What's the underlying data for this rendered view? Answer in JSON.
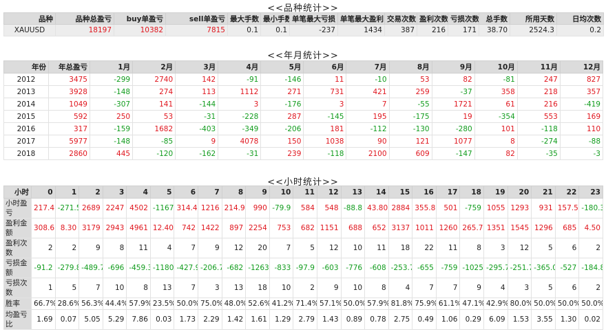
{
  "variety_stats": {
    "title": "<<品种统计>>",
    "headers": [
      "品种",
      "品种总盈亏",
      "buy单盈亏",
      "sell单盈亏",
      "最大手数",
      "最小手数",
      "单笔最大亏损",
      "单笔最大盈利",
      "交易次数",
      "盈利次数",
      "亏损次数",
      "总手数",
      "所用天数",
      "日均次数"
    ],
    "rows": [
      [
        "XAUUSD",
        "18197",
        "10382",
        "7815",
        "0.1",
        "0.1",
        "-237",
        "1434",
        "387",
        "216",
        "171",
        "38.70",
        "2524.3",
        "0.2"
      ]
    ]
  },
  "year_month_stats": {
    "title": "<<年月统计>>",
    "headers": [
      "年份",
      "年总盈亏",
      "1月",
      "2月",
      "3月",
      "4月",
      "5月",
      "6月",
      "7月",
      "8月",
      "9月",
      "10月",
      "11月",
      "12月"
    ],
    "rows": [
      [
        "2012",
        "3475",
        "-299",
        "2740",
        "142",
        "-91",
        "-146",
        "11",
        "-10",
        "53",
        "82",
        "-81",
        "247",
        "827"
      ],
      [
        "2013",
        "3928",
        "-148",
        "274",
        "113",
        "1112",
        "271",
        "731",
        "421",
        "259",
        "-37",
        "358",
        "218",
        "357"
      ],
      [
        "2014",
        "1049",
        "-307",
        "141",
        "-144",
        "3",
        "-176",
        "3",
        "7",
        "-55",
        "1721",
        "61",
        "216",
        "-419"
      ],
      [
        "2015",
        "592",
        "250",
        "53",
        "-31",
        "-228",
        "287",
        "-145",
        "195",
        "-175",
        "19",
        "-354",
        "553",
        "169"
      ],
      [
        "2016",
        "317",
        "-159",
        "1682",
        "-403",
        "-349",
        "-206",
        "181",
        "-112",
        "-130",
        "-280",
        "101",
        "-118",
        "110"
      ],
      [
        "2017",
        "5977",
        "-148",
        "-85",
        "9",
        "4078",
        "150",
        "1038",
        "90",
        "121",
        "1077",
        "8",
        "-274",
        "-88"
      ],
      [
        "2018",
        "2860",
        "445",
        "-120",
        "-162",
        "-31",
        "239",
        "-118",
        "2100",
        "609",
        "-147",
        "82",
        "-35",
        "-3"
      ]
    ]
  },
  "hour_stats": {
    "title": "<<小时统计>>",
    "headers": [
      "小时",
      "0",
      "1",
      "2",
      "3",
      "4",
      "5",
      "6",
      "7",
      "8",
      "9",
      "10",
      "11",
      "12",
      "13",
      "14",
      "15",
      "16",
      "17",
      "18",
      "19",
      "20",
      "21",
      "22",
      "23"
    ],
    "rows": [
      [
        "小时盈亏",
        "217.4",
        "-271.5",
        "2689",
        "2247",
        "4502",
        "-1167",
        "314.4",
        "1216",
        "214.9",
        "990",
        "-79.9",
        "584",
        "548",
        "-88.8",
        "43.80",
        "2884",
        "355.8",
        "501",
        "-759",
        "1055",
        "1293",
        "931",
        "157.5",
        "-180.3"
      ],
      [
        "盈利金额",
        "308.6",
        "8.30",
        "3179",
        "2943",
        "4961",
        "12.40",
        "742",
        "1422",
        "897",
        "2254",
        "753",
        "682",
        "1151",
        "688",
        "652",
        "3137",
        "1011",
        "1260",
        "265.7",
        "1351",
        "1545",
        "1296",
        "685",
        "4.50"
      ],
      [
        "盈利次数",
        "2",
        "2",
        "9",
        "8",
        "11",
        "4",
        "7",
        "9",
        "12",
        "20",
        "7",
        "5",
        "12",
        "10",
        "11",
        "18",
        "22",
        "11",
        "8",
        "3",
        "12",
        "5",
        "6",
        "2"
      ],
      [
        "亏损金额",
        "-91.2",
        "-279.8",
        "-489.7",
        "-696",
        "-459.3",
        "-1180",
        "-427.9",
        "-206.7",
        "-682",
        "-1263",
        "-833",
        "-97.9",
        "-603",
        "-776",
        "-608",
        "-253.7",
        "-655",
        "-759",
        "-1025",
        "-295.7",
        "-251.7",
        "-365.0",
        "-527",
        "-184.8"
      ],
      [
        "亏损次数",
        "1",
        "5",
        "7",
        "10",
        "8",
        "13",
        "7",
        "3",
        "13",
        "18",
        "10",
        "2",
        "9",
        "10",
        "8",
        "4",
        "7",
        "7",
        "9",
        "4",
        "3",
        "5",
        "6",
        "2"
      ],
      [
        "胜率",
        "66.7%",
        "28.6%",
        "56.3%",
        "44.4%",
        "57.9%",
        "23.5%",
        "50.0%",
        "75.0%",
        "48.0%",
        "52.6%",
        "41.2%",
        "71.4%",
        "57.1%",
        "50.0%",
        "57.9%",
        "81.8%",
        "75.9%",
        "61.1%",
        "47.1%",
        "42.9%",
        "80.0%",
        "50.0%",
        "50.0%",
        "50.0%"
      ],
      [
        "均盈亏比",
        "1.69",
        "0.07",
        "5.05",
        "5.29",
        "7.86",
        "0.03",
        "1.73",
        "2.29",
        "1.42",
        "1.61",
        "1.29",
        "2.79",
        "1.43",
        "0.89",
        "0.78",
        "2.75",
        "0.49",
        "1.06",
        "0.29",
        "6.09",
        "1.53",
        "3.55",
        "1.30",
        "0.02"
      ]
    ]
  }
}
